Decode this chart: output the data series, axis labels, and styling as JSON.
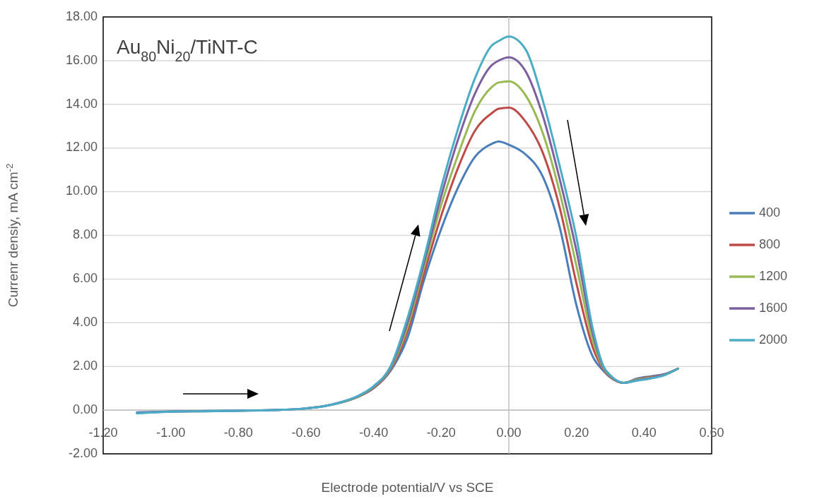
{
  "chart_data": {
    "type": "line",
    "title": "Au$_{80}$Ni$_{20}$/TiNT-C",
    "xlabel": "Electrode potential/V vs SCE",
    "ylabel": "Currenr densiy, mA cm$^{-2}$",
    "x": [
      -1.1,
      -1.0,
      -0.9,
      -0.8,
      -0.7,
      -0.6,
      -0.55,
      -0.5,
      -0.45,
      -0.4,
      -0.35,
      -0.3,
      -0.25,
      -0.2,
      -0.15,
      -0.1,
      -0.05,
      -0.03,
      0,
      0.05,
      0.1,
      0.15,
      0.2,
      0.25,
      0.28,
      0.3,
      0.34,
      0.38,
      0.42,
      0.46,
      0.5
    ],
    "series": [
      {
        "name": "400",
        "color": "#4a7ebb",
        "values": [
          -0.1,
          -0.06,
          -0.04,
          -0.02,
          0,
          0.08,
          0.17,
          0.33,
          0.58,
          1.0,
          1.8,
          3.3,
          6.0,
          8.3,
          10.2,
          11.6,
          12.2,
          12.3,
          12.15,
          11.7,
          10.7,
          8.4,
          4.8,
          2.4,
          1.8,
          1.5,
          1.25,
          1.45,
          1.55,
          1.65,
          1.9
        ]
      },
      {
        "name": "800",
        "color": "#be4b48",
        "values": [
          null,
          null,
          null,
          null,
          null,
          null,
          null,
          0.34,
          0.59,
          1.03,
          1.86,
          3.6,
          6.3,
          8.9,
          11.1,
          12.8,
          13.6,
          13.8,
          13.85,
          13.2,
          11.8,
          9.3,
          5.8,
          2.8,
          1.86,
          1.53,
          1.25,
          1.42,
          1.52,
          1.63,
          1.9
        ]
      },
      {
        "name": "1200",
        "color": "#98b954",
        "values": [
          null,
          null,
          null,
          null,
          null,
          null,
          null,
          0.34,
          0.6,
          1.06,
          1.91,
          3.8,
          6.6,
          9.4,
          11.7,
          13.7,
          14.8,
          15.0,
          15.05,
          14.4,
          12.7,
          10.0,
          6.6,
          3.1,
          1.91,
          1.56,
          1.25,
          1.4,
          1.49,
          1.62,
          1.9
        ]
      },
      {
        "name": "1600",
        "color": "#7d60a0",
        "values": [
          -0.13,
          -0.07,
          -0.05,
          -0.03,
          0,
          0.08,
          0.17,
          0.35,
          0.61,
          1.08,
          1.96,
          4.0,
          6.8,
          9.8,
          12.4,
          14.5,
          15.8,
          16.0,
          16.15,
          15.5,
          13.5,
          10.6,
          7.3,
          3.4,
          1.96,
          1.58,
          1.25,
          1.37,
          1.47,
          1.61,
          1.9
        ]
      },
      {
        "name": "2000",
        "color": "#4bacc6",
        "values": [
          -0.15,
          -0.07,
          -0.05,
          -0.03,
          0,
          0.08,
          0.17,
          0.35,
          0.62,
          1.1,
          2.0,
          4.2,
          7.0,
          10.2,
          12.9,
          15.2,
          16.7,
          16.9,
          17.1,
          16.5,
          14.2,
          11.2,
          7.9,
          3.6,
          2.0,
          1.6,
          1.25,
          1.35,
          1.45,
          1.6,
          1.9
        ]
      }
    ],
    "xlim": [
      -1.2,
      0.6
    ],
    "xticks": [
      {
        "value": -1.2,
        "label": "-1.20"
      },
      {
        "value": -1.0,
        "label": "-1.00"
      },
      {
        "value": -0.8,
        "label": "-0.80"
      },
      {
        "value": -0.6,
        "label": "-0.60"
      },
      {
        "value": -0.4,
        "label": "-0.40"
      },
      {
        "value": -0.2,
        "label": "-0.20"
      },
      {
        "value": 0,
        "label": "0.00"
      },
      {
        "value": 0.2,
        "label": "0.20"
      },
      {
        "value": 0.4,
        "label": "0.40"
      },
      {
        "value": 0.6,
        "label": "0.60"
      }
    ],
    "ylim": [
      -2,
      18
    ],
    "yticks": [
      {
        "value": -2,
        "label": "-2.00"
      },
      {
        "value": 0,
        "label": "0.00"
      },
      {
        "value": 2,
        "label": "2.00"
      },
      {
        "value": 4,
        "label": "4.00"
      },
      {
        "value": 6,
        "label": "6.00"
      },
      {
        "value": 8,
        "label": "8.00"
      },
      {
        "value": 10,
        "label": "10.00"
      },
      {
        "value": 12,
        "label": "12.00"
      },
      {
        "value": 14,
        "label": "14.00"
      },
      {
        "value": 16,
        "label": "16.00"
      },
      {
        "value": 18,
        "label": "18.00"
      }
    ],
    "grid": "y",
    "legend": "right",
    "marker": "none",
    "line_style": "solid"
  }
}
